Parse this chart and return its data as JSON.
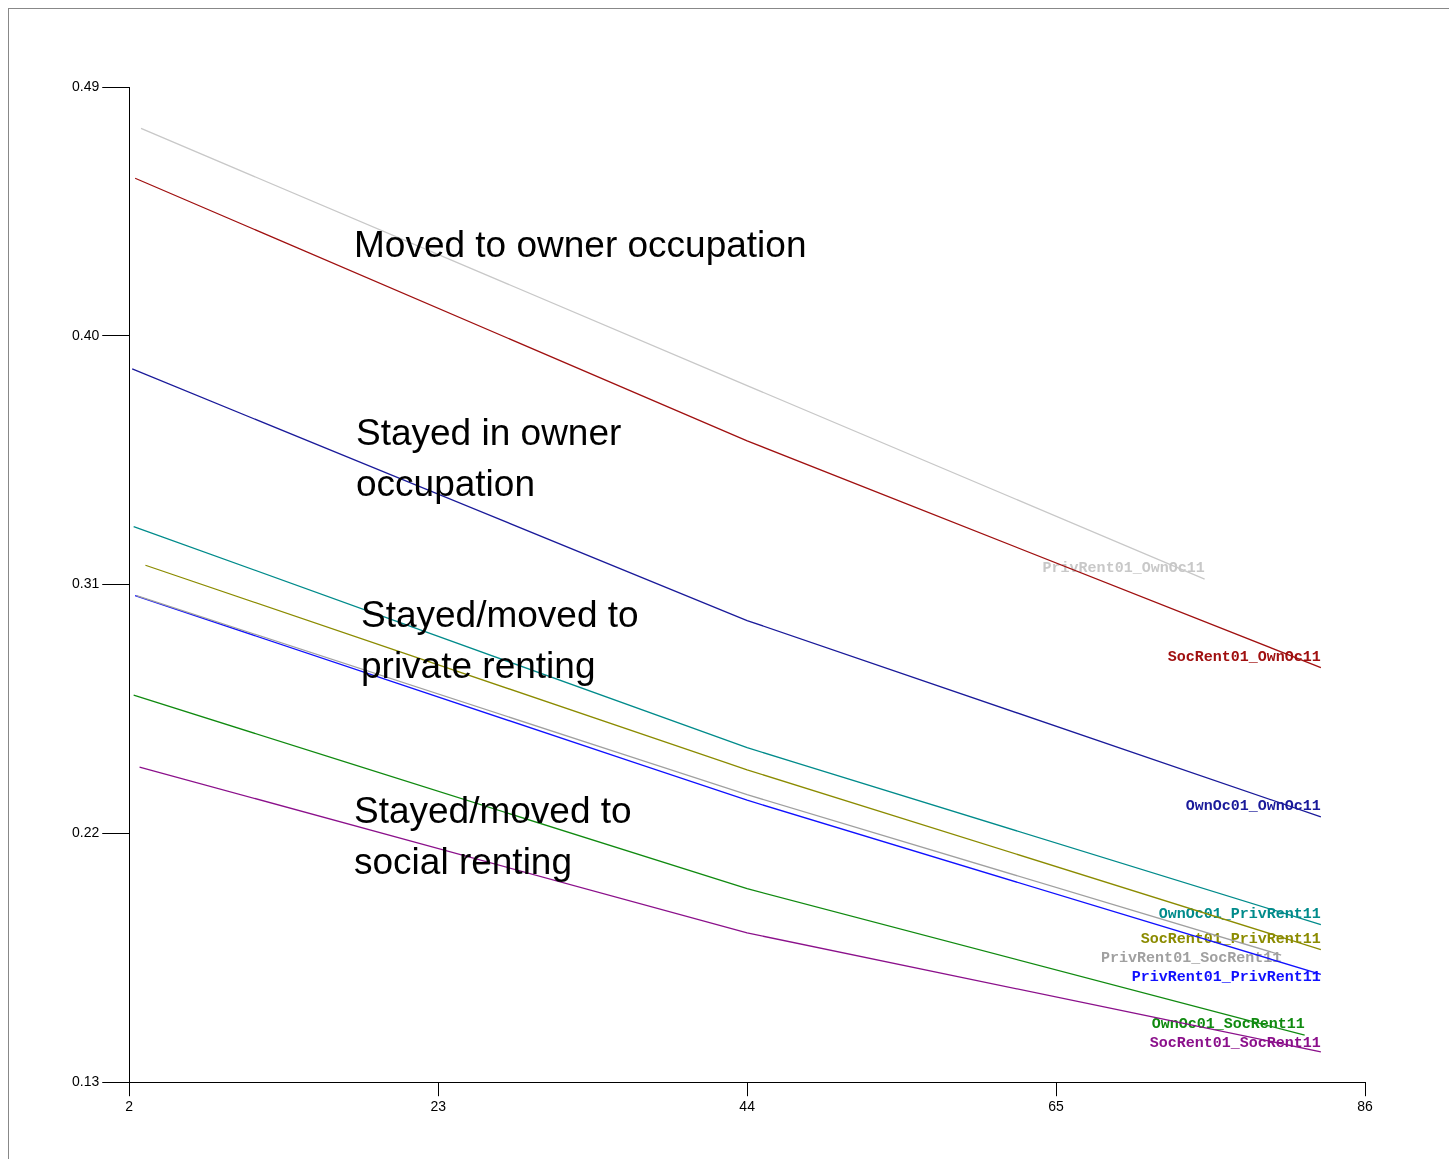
{
  "chart_data": {
    "type": "line",
    "xlim": [
      2,
      86
    ],
    "xticks": [
      2,
      23,
      44,
      65,
      86
    ],
    "ylim": [
      0.13,
      0.49
    ],
    "yticks": [
      0.13,
      0.22,
      0.31,
      {
        "value": 0.4,
        "label": "0.40"
      },
      0.49
    ],
    "grid": false,
    "legend": false,
    "marker": "none",
    "line_style": "solid",
    "annotations": [
      "Moved to owner occupation",
      "Stayed in owner occupation",
      "Stayed/moved to private renting",
      "Stayed/moved to social renting"
    ],
    "series": [
      {
        "name": "PrivRent01_OwnOc11",
        "color": "#c8c8c8",
        "x": [
          2.8,
          44,
          75.1
        ],
        "values": [
          0.475,
          0.382,
          0.312
        ]
      },
      {
        "name": "SocRent01_OwnOc11",
        "color": "#a01010",
        "x": [
          2.4,
          44,
          83
        ],
        "values": [
          0.457,
          0.362,
          0.28
        ]
      },
      {
        "name": "OwnOc01_OwnOc11",
        "color": "#1a1a9a",
        "x": [
          2.2,
          44,
          83
        ],
        "values": [
          0.388,
          0.297,
          0.226
        ]
      },
      {
        "name": "OwnOc01_PrivRent11",
        "color": "#008b8b",
        "x": [
          2.3,
          44,
          83
        ],
        "values": [
          0.331,
          0.251,
          0.187
        ]
      },
      {
        "name": "SocRent01_PrivRent11",
        "color": "#8b8b00",
        "x": [
          3.1,
          44,
          83
        ],
        "values": [
          0.317,
          0.243,
          0.178
        ]
      },
      {
        "name": "PrivRent01_SocRent11",
        "color": "#a0a0a0",
        "x": [
          2.5,
          44,
          80.3
        ],
        "values": [
          0.306,
          0.234,
          0.176
        ]
      },
      {
        "name": "PrivRent01_PrivRent11",
        "color": "#1010ff",
        "x": [
          2.4,
          44,
          83
        ],
        "values": [
          0.306,
          0.232,
          0.169
        ]
      },
      {
        "name": "OwnOc01_SocRent11",
        "color": "#108a10",
        "x": [
          2.3,
          44,
          81.9
        ],
        "values": [
          0.27,
          0.2,
          0.147
        ]
      },
      {
        "name": "SocRent01_SocRent11",
        "color": "#8b108b",
        "x": [
          2.7,
          44,
          83
        ],
        "values": [
          0.244,
          0.184,
          0.141
        ]
      }
    ]
  }
}
